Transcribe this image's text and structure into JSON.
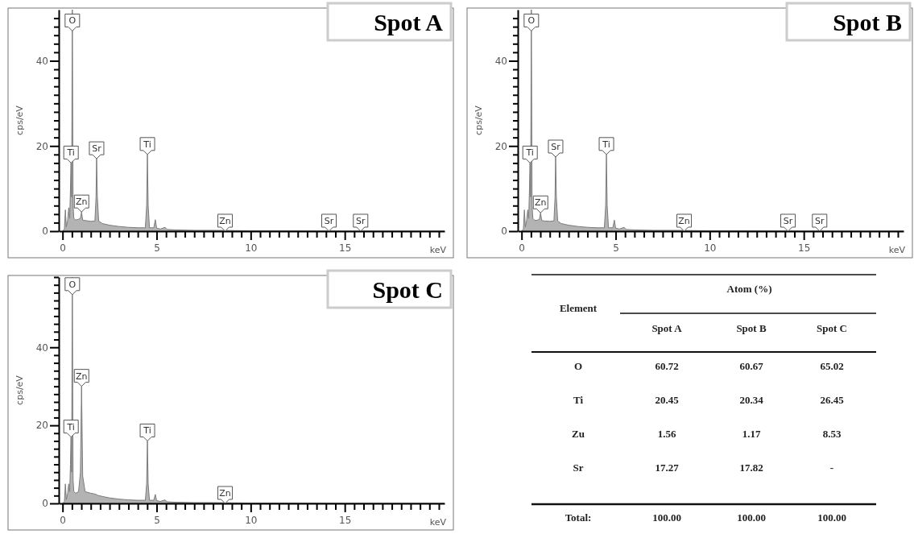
{
  "chart_data": [
    {
      "type": "area",
      "title": "Spot A",
      "xlabel": "keV",
      "ylabel": "cps/eV",
      "color": "#9a9a9a",
      "xlim": [
        -0.2,
        20.3
      ],
      "ylim": [
        0,
        52
      ],
      "xticks": [
        0,
        {
          "value": 0.5,
          "label": null
        },
        {
          "value": 1,
          "label": null
        },
        {
          "value": 1.5,
          "label": null
        },
        {
          "value": 2,
          "label": null
        },
        {
          "value": 2.5,
          "label": null
        },
        {
          "value": 3,
          "label": null
        },
        {
          "value": 3.5,
          "label": null
        },
        {
          "value": 4,
          "label": null
        },
        {
          "value": 4.5,
          "label": null
        },
        5,
        {
          "value": 5.5,
          "label": null
        },
        {
          "value": 6,
          "label": null
        },
        {
          "value": 6.5,
          "label": null
        },
        {
          "value": 7,
          "label": null
        },
        {
          "value": 7.5,
          "label": null
        },
        {
          "value": 8,
          "label": null
        },
        {
          "value": 8.5,
          "label": null
        },
        {
          "value": 9,
          "label": null
        },
        {
          "value": 9.5,
          "label": null
        },
        10,
        {
          "value": 10.5,
          "label": null
        },
        {
          "value": 11,
          "label": null
        },
        {
          "value": 11.5,
          "label": null
        },
        {
          "value": 12,
          "label": null
        },
        {
          "value": 12.5,
          "label": null
        },
        {
          "value": 13,
          "label": null
        },
        {
          "value": 13.5,
          "label": null
        },
        {
          "value": 14,
          "label": null
        },
        {
          "value": 14.5,
          "label": null
        },
        15,
        {
          "value": 15.5,
          "label": null
        },
        {
          "value": 16,
          "label": null
        },
        {
          "value": 16.5,
          "label": null
        },
        {
          "value": 17,
          "label": null
        },
        {
          "value": 17.5,
          "label": null
        },
        {
          "value": 18,
          "label": null
        },
        {
          "value": 18.5,
          "label": null
        },
        {
          "value": 19,
          "label": null
        },
        {
          "value": 19.5,
          "label": null
        },
        {
          "value": 20,
          "label": null
        }
      ],
      "yticks": [
        0,
        {
          "value": 2,
          "label": null
        },
        {
          "value": 4,
          "label": null
        },
        {
          "value": 6,
          "label": null
        },
        {
          "value": 8,
          "label": null
        },
        {
          "value": 10,
          "label": null
        },
        {
          "value": 12,
          "label": null
        },
        {
          "value": 14,
          "label": null
        },
        {
          "value": 16,
          "label": null
        },
        {
          "value": 18,
          "label": null
        },
        20,
        {
          "value": 22,
          "label": null
        },
        {
          "value": 24,
          "label": null
        },
        {
          "value": 26,
          "label": null
        },
        {
          "value": 28,
          "label": null
        },
        {
          "value": 30,
          "label": null
        },
        {
          "value": 32,
          "label": null
        },
        {
          "value": 34,
          "label": null
        },
        {
          "value": 36,
          "label": null
        },
        {
          "value": 38,
          "label": null
        },
        40,
        {
          "value": 42,
          "label": null
        },
        {
          "value": 44,
          "label": null
        },
        {
          "value": 46,
          "label": null
        },
        {
          "value": 48,
          "label": null
        },
        {
          "value": 50,
          "label": null
        }
      ],
      "x": [
        0,
        0.1,
        0.15,
        0.2,
        0.27,
        0.33,
        0.38,
        0.42,
        0.45,
        0.48,
        0.52,
        0.56,
        0.6,
        0.7,
        0.85,
        0.95,
        1.01,
        1.07,
        1.2,
        1.5,
        1.72,
        1.78,
        1.81,
        1.85,
        1.92,
        2.1,
        2.5,
        3,
        3.5,
        4,
        4.4,
        4.47,
        4.51,
        4.55,
        4.62,
        4.85,
        4.93,
        5.0,
        5.2,
        5.45,
        5.55,
        6,
        7,
        8,
        10,
        12,
        15,
        20.3
      ],
      "values": [
        0,
        0.5,
        5,
        1,
        2.5,
        5.5,
        3,
        10,
        16,
        8,
        52,
        6,
        3,
        2.6,
        2.8,
        3,
        4.5,
        2.6,
        2.5,
        2.3,
        2.4,
        8,
        17,
        8,
        2.4,
        1.8,
        1.4,
        1.1,
        0.9,
        0.8,
        0.8,
        6,
        18,
        6,
        0.8,
        0.8,
        2.7,
        0.7,
        0.5,
        0.9,
        0.4,
        0.3,
        0.2,
        0.2,
        0.1,
        0.1,
        0,
        0
      ],
      "annotations": [
        {
          "text": "O",
          "x": 0.52,
          "y": 47
        },
        {
          "text": "Ti",
          "x": 0.45,
          "y": 16
        },
        {
          "text": "Zn",
          "x": 1.01,
          "y": 4.5
        },
        {
          "text": "Sr",
          "x": 1.81,
          "y": 17
        },
        {
          "text": "Ti",
          "x": 4.51,
          "y": 18
        },
        {
          "text": "Zn",
          "x": 8.64,
          "y": 0
        },
        {
          "text": "Sr",
          "x": 14.16,
          "y": 0
        },
        {
          "text": "Sr",
          "x": 15.84,
          "y": 0
        }
      ]
    },
    {
      "type": "area",
      "title": "Spot B",
      "xlabel": "keV",
      "ylabel": "cps/eV",
      "color": "#9a9a9a",
      "xlim": [
        -0.2,
        20.3
      ],
      "ylim": [
        0,
        52
      ],
      "xticks": [
        0,
        {
          "value": 0.5,
          "label": null
        },
        {
          "value": 1,
          "label": null
        },
        {
          "value": 1.5,
          "label": null
        },
        {
          "value": 2,
          "label": null
        },
        {
          "value": 2.5,
          "label": null
        },
        {
          "value": 3,
          "label": null
        },
        {
          "value": 3.5,
          "label": null
        },
        {
          "value": 4,
          "label": null
        },
        {
          "value": 4.5,
          "label": null
        },
        5,
        {
          "value": 5.5,
          "label": null
        },
        {
          "value": 6,
          "label": null
        },
        {
          "value": 6.5,
          "label": null
        },
        {
          "value": 7,
          "label": null
        },
        {
          "value": 7.5,
          "label": null
        },
        {
          "value": 8,
          "label": null
        },
        {
          "value": 8.5,
          "label": null
        },
        {
          "value": 9,
          "label": null
        },
        {
          "value": 9.5,
          "label": null
        },
        10,
        {
          "value": 10.5,
          "label": null
        },
        {
          "value": 11,
          "label": null
        },
        {
          "value": 11.5,
          "label": null
        },
        {
          "value": 12,
          "label": null
        },
        {
          "value": 12.5,
          "label": null
        },
        {
          "value": 13,
          "label": null
        },
        {
          "value": 13.5,
          "label": null
        },
        {
          "value": 14,
          "label": null
        },
        {
          "value": 14.5,
          "label": null
        },
        15,
        {
          "value": 15.5,
          "label": null
        },
        {
          "value": 16,
          "label": null
        },
        {
          "value": 16.5,
          "label": null
        },
        {
          "value": 17,
          "label": null
        },
        {
          "value": 17.5,
          "label": null
        },
        {
          "value": 18,
          "label": null
        },
        {
          "value": 18.5,
          "label": null
        },
        {
          "value": 19,
          "label": null
        },
        {
          "value": 19.5,
          "label": null
        },
        {
          "value": 20,
          "label": null
        }
      ],
      "yticks": [
        0,
        {
          "value": 2,
          "label": null
        },
        {
          "value": 4,
          "label": null
        },
        {
          "value": 6,
          "label": null
        },
        {
          "value": 8,
          "label": null
        },
        {
          "value": 10,
          "label": null
        },
        {
          "value": 12,
          "label": null
        },
        {
          "value": 14,
          "label": null
        },
        {
          "value": 16,
          "label": null
        },
        {
          "value": 18,
          "label": null
        },
        20,
        {
          "value": 22,
          "label": null
        },
        {
          "value": 24,
          "label": null
        },
        {
          "value": 26,
          "label": null
        },
        {
          "value": 28,
          "label": null
        },
        {
          "value": 30,
          "label": null
        },
        {
          "value": 32,
          "label": null
        },
        {
          "value": 34,
          "label": null
        },
        {
          "value": 36,
          "label": null
        },
        {
          "value": 38,
          "label": null
        },
        40,
        {
          "value": 42,
          "label": null
        },
        {
          "value": 44,
          "label": null
        },
        {
          "value": 46,
          "label": null
        },
        {
          "value": 48,
          "label": null
        },
        {
          "value": 50,
          "label": null
        }
      ],
      "x": [
        0,
        0.1,
        0.15,
        0.2,
        0.27,
        0.33,
        0.38,
        0.42,
        0.45,
        0.48,
        0.52,
        0.56,
        0.6,
        0.7,
        0.85,
        0.95,
        1.01,
        1.07,
        1.2,
        1.5,
        1.72,
        1.78,
        1.81,
        1.85,
        1.92,
        2.1,
        2.5,
        3,
        3.5,
        4,
        4.4,
        4.47,
        4.51,
        4.55,
        4.62,
        4.85,
        4.93,
        5.0,
        5.2,
        5.45,
        5.55,
        6,
        7,
        8,
        10,
        12,
        15,
        20.3
      ],
      "values": [
        0,
        0.5,
        5,
        1,
        2.5,
        5,
        3,
        10,
        16,
        8,
        52,
        6,
        3,
        2.5,
        2.6,
        2.8,
        4.3,
        2.5,
        2.4,
        2.3,
        2.4,
        8,
        17.4,
        8,
        2.4,
        1.8,
        1.4,
        1.1,
        0.9,
        0.8,
        0.8,
        6,
        18,
        6,
        0.8,
        0.8,
        2.6,
        0.7,
        0.5,
        0.9,
        0.4,
        0.3,
        0.2,
        0.2,
        0.1,
        0.1,
        0,
        0
      ],
      "annotations": [
        {
          "text": "O",
          "x": 0.52,
          "y": 47
        },
        {
          "text": "Ti",
          "x": 0.45,
          "y": 16
        },
        {
          "text": "Zn",
          "x": 1.01,
          "y": 4.3
        },
        {
          "text": "Sr",
          "x": 1.81,
          "y": 17.4
        },
        {
          "text": "Ti",
          "x": 4.51,
          "y": 18
        },
        {
          "text": "Zn",
          "x": 8.64,
          "y": 0
        },
        {
          "text": "Sr",
          "x": 14.16,
          "y": 0
        },
        {
          "text": "Sr",
          "x": 15.84,
          "y": 0
        }
      ]
    },
    {
      "type": "area",
      "title": "Spot C",
      "xlabel": "keV",
      "ylabel": "cps/eV",
      "color": "#9a9a9a",
      "xlim": [
        -0.2,
        20.3
      ],
      "ylim": [
        0,
        58
      ],
      "xticks": [
        0,
        {
          "value": 0.5,
          "label": null
        },
        {
          "value": 1,
          "label": null
        },
        {
          "value": 1.5,
          "label": null
        },
        {
          "value": 2,
          "label": null
        },
        {
          "value": 2.5,
          "label": null
        },
        {
          "value": 3,
          "label": null
        },
        {
          "value": 3.5,
          "label": null
        },
        {
          "value": 4,
          "label": null
        },
        {
          "value": 4.5,
          "label": null
        },
        5,
        {
          "value": 5.5,
          "label": null
        },
        {
          "value": 6,
          "label": null
        },
        {
          "value": 6.5,
          "label": null
        },
        {
          "value": 7,
          "label": null
        },
        {
          "value": 7.5,
          "label": null
        },
        {
          "value": 8,
          "label": null
        },
        {
          "value": 8.5,
          "label": null
        },
        {
          "value": 9,
          "label": null
        },
        {
          "value": 9.5,
          "label": null
        },
        10,
        {
          "value": 10.5,
          "label": null
        },
        {
          "value": 11,
          "label": null
        },
        {
          "value": 11.5,
          "label": null
        },
        {
          "value": 12,
          "label": null
        },
        {
          "value": 12.5,
          "label": null
        },
        {
          "value": 13,
          "label": null
        },
        {
          "value": 13.5,
          "label": null
        },
        {
          "value": 14,
          "label": null
        },
        {
          "value": 14.5,
          "label": null
        },
        15,
        {
          "value": 15.5,
          "label": null
        },
        {
          "value": 16,
          "label": null
        },
        {
          "value": 16.5,
          "label": null
        },
        {
          "value": 17,
          "label": null
        },
        {
          "value": 17.5,
          "label": null
        },
        {
          "value": 18,
          "label": null
        },
        {
          "value": 18.5,
          "label": null
        },
        {
          "value": 19,
          "label": null
        },
        {
          "value": 19.5,
          "label": null
        },
        {
          "value": 20,
          "label": null
        }
      ],
      "yticks": [
        0,
        {
          "value": 2,
          "label": null
        },
        {
          "value": 4,
          "label": null
        },
        {
          "value": 6,
          "label": null
        },
        {
          "value": 8,
          "label": null
        },
        {
          "value": 10,
          "label": null
        },
        {
          "value": 12,
          "label": null
        },
        {
          "value": 14,
          "label": null
        },
        {
          "value": 16,
          "label": null
        },
        {
          "value": 18,
          "label": null
        },
        20,
        {
          "value": 22,
          "label": null
        },
        {
          "value": 24,
          "label": null
        },
        {
          "value": 26,
          "label": null
        },
        {
          "value": 28,
          "label": null
        },
        {
          "value": 30,
          "label": null
        },
        {
          "value": 32,
          "label": null
        },
        {
          "value": 34,
          "label": null
        },
        {
          "value": 36,
          "label": null
        },
        {
          "value": 38,
          "label": null
        },
        40,
        {
          "value": 42,
          "label": null
        },
        {
          "value": 44,
          "label": null
        },
        {
          "value": 46,
          "label": null
        },
        {
          "value": 48,
          "label": null
        },
        {
          "value": 50,
          "label": null
        },
        {
          "value": 52,
          "label": null
        },
        {
          "value": 54,
          "label": null
        },
        {
          "value": 56,
          "label": null
        },
        {
          "value": 58,
          "label": null
        }
      ],
      "x": [
        0,
        0.1,
        0.15,
        0.2,
        0.27,
        0.33,
        0.38,
        0.42,
        0.45,
        0.48,
        0.52,
        0.56,
        0.6,
        0.7,
        0.85,
        0.95,
        1.01,
        1.07,
        1.2,
        1.5,
        1.72,
        1.78,
        1.81,
        1.85,
        1.92,
        2.1,
        2.5,
        3,
        3.5,
        4,
        4.4,
        4.47,
        4.51,
        4.55,
        4.62,
        4.85,
        4.93,
        5.0,
        5.2,
        5.45,
        5.55,
        6,
        7,
        8,
        10,
        12,
        15,
        20.3
      ],
      "values": [
        0,
        0.5,
        5,
        1,
        2.5,
        5,
        3,
        10,
        17,
        8,
        58,
        6,
        3,
        2.6,
        3,
        8,
        30,
        7,
        3,
        2.6,
        2.4,
        2.3,
        2.2,
        2.1,
        2.0,
        1.8,
        1.4,
        1.1,
        0.9,
        0.8,
        0.8,
        5,
        16,
        5,
        0.8,
        0.8,
        2.3,
        0.7,
        0.5,
        0.9,
        0.4,
        0.3,
        0.2,
        0.2,
        0.1,
        0.1,
        0,
        0
      ],
      "annotations": [
        {
          "text": "O",
          "x": 0.52,
          "y": 53.5
        },
        {
          "text": "Ti",
          "x": 0.45,
          "y": 17
        },
        {
          "text": "Zn",
          "x": 1.01,
          "y": 30
        },
        {
          "text": "Ti",
          "x": 4.51,
          "y": 16
        },
        {
          "text": "Zn",
          "x": 8.64,
          "y": 0
        }
      ]
    },
    {
      "type": "other",
      "title": "Atom (%)",
      "categories": [
        "O",
        "Ti",
        "Zu",
        "Sr"
      ],
      "data_labels": true,
      "series": [
        {
          "name": "Spot A",
          "values": [
            60.72,
            20.45,
            1.56,
            17.27
          ]
        },
        {
          "name": "Spot B",
          "values": [
            60.67,
            20.34,
            1.17,
            17.82
          ]
        },
        {
          "name": "Spot C",
          "values": [
            65.02,
            26.45,
            8.53,
            null
          ],
          "value_labels": [
            "65.02",
            "26.45",
            "8.53",
            "-"
          ]
        }
      ],
      "totals": [
        "100.00",
        "100.00",
        "100.00"
      ],
      "annotations": [
        "Element",
        "Total:"
      ]
    }
  ]
}
